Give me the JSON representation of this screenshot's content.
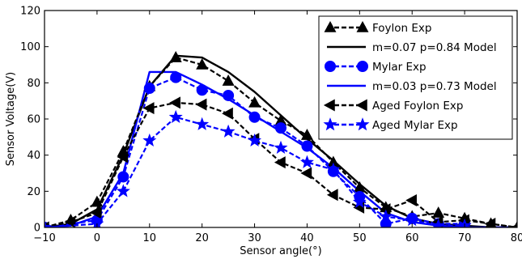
{
  "chart_data": {
    "type": "line",
    "xlabel": "Sensor angle(°)",
    "ylabel": "Sensor Voltage(V)",
    "xlim": [
      -10,
      80
    ],
    "ylim": [
      0,
      120
    ],
    "xticks": [
      "−10",
      "0",
      "10",
      "20",
      "30",
      "40",
      "50",
      "60",
      "70",
      "80"
    ],
    "xtick_values": [
      -10,
      0,
      10,
      20,
      30,
      40,
      50,
      60,
      70,
      80
    ],
    "yticks": [
      "0",
      "20",
      "40",
      "60",
      "80",
      "100",
      "120"
    ],
    "ytick_values": [
      0,
      20,
      40,
      60,
      80,
      100,
      120
    ],
    "grid": false,
    "legend_position": "top-right",
    "series": [
      {
        "name": "Foylon Exp",
        "color": "#000000",
        "linestyle": "dashed",
        "marker": "triangle-up",
        "x": [
          -10,
          -5,
          0,
          5,
          10,
          15,
          20,
          25,
          30,
          35,
          40,
          45,
          50,
          55,
          60,
          65,
          70,
          75,
          80
        ],
        "y": [
          0,
          4,
          14,
          42,
          78,
          94,
          90,
          81,
          69,
          59,
          51,
          36,
          22,
          11,
          6,
          8,
          5,
          2,
          0
        ]
      },
      {
        "name": "m=0.07 p=0.84 Model",
        "color": "#000000",
        "linestyle": "solid",
        "marker": "none",
        "x": [
          -10,
          -5,
          0,
          5,
          10,
          15,
          20,
          25,
          30,
          35,
          40,
          45,
          50,
          55,
          60,
          65,
          70,
          75,
          80
        ],
        "y": [
          0,
          2,
          10,
          40,
          78,
          95,
          94,
          86,
          75,
          62,
          49,
          37,
          24,
          12,
          5,
          2,
          1,
          0,
          0
        ]
      },
      {
        "name": "Mylar Exp",
        "color": "#0000ff",
        "linestyle": "dashed",
        "marker": "circle",
        "x": [
          -10,
          0,
          5,
          10,
          15,
          20,
          25,
          30,
          35,
          40,
          45,
          50,
          55,
          60,
          65,
          70
        ],
        "y": [
          0,
          4,
          28,
          77,
          83,
          76,
          73,
          61,
          55,
          45,
          31,
          17,
          2,
          5,
          2,
          2
        ]
      },
      {
        "name": "m=0.03 p=0.73 Model",
        "color": "#0000ff",
        "linestyle": "solid",
        "marker": "none",
        "x": [
          -10,
          -5,
          0,
          5,
          10,
          15,
          20,
          25,
          30,
          35,
          40,
          45,
          50,
          55,
          60,
          65,
          70,
          75,
          80
        ],
        "y": [
          0,
          1,
          6,
          30,
          86,
          86,
          79,
          71,
          62,
          53,
          44,
          33,
          20,
          8,
          3,
          1,
          0,
          0,
          0
        ]
      },
      {
        "name": "Aged Foylon Exp",
        "color": "#000000",
        "linestyle": "dashed",
        "marker": "triangle-left",
        "x": [
          -10,
          -5,
          0,
          5,
          10,
          15,
          20,
          25,
          30,
          35,
          40,
          45,
          50,
          55,
          60,
          65,
          70,
          75,
          80
        ],
        "y": [
          0,
          3,
          8,
          39,
          66,
          69,
          68,
          63,
          49,
          36,
          30,
          18,
          11,
          10,
          15,
          3,
          4,
          2,
          0
        ]
      },
      {
        "name": "Aged Mylar Exp",
        "color": "#0000ff",
        "linestyle": "dashed",
        "marker": "star",
        "x": [
          -10,
          0,
          5,
          10,
          15,
          20,
          25,
          30,
          35,
          40,
          45,
          50,
          55,
          60,
          65,
          70
        ],
        "y": [
          0,
          2,
          20,
          48,
          61,
          57,
          53,
          48,
          44,
          36,
          32,
          14,
          6,
          4,
          1,
          1
        ]
      }
    ]
  }
}
